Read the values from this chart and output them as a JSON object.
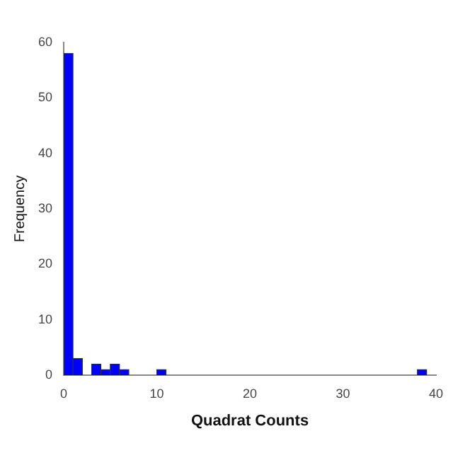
{
  "chart_data": {
    "type": "histogram",
    "xlabel": "Quadrat Counts",
    "ylabel": "Frequency",
    "bins": [
      0,
      1,
      2,
      3,
      4,
      5,
      6,
      7,
      8,
      9,
      10,
      11,
      12,
      13,
      14,
      15,
      16,
      17,
      18,
      19,
      20,
      21,
      22,
      23,
      24,
      25,
      26,
      27,
      28,
      29,
      30,
      31,
      32,
      33,
      34,
      35,
      36,
      37,
      38,
      39
    ],
    "values": [
      58,
      3,
      0,
      2,
      1,
      2,
      1,
      0,
      0,
      0,
      1,
      0,
      0,
      0,
      0,
      0,
      0,
      0,
      0,
      0,
      0,
      0,
      0,
      0,
      0,
      0,
      0,
      0,
      0,
      0,
      0,
      0,
      0,
      0,
      0,
      0,
      0,
      0,
      1
    ],
    "color": "#0000ff",
    "xlim": [
      0,
      40
    ],
    "xticks": [
      0,
      10,
      20,
      30,
      40
    ],
    "ylim": [
      0,
      60
    ],
    "yticks": [
      0,
      10,
      20,
      30,
      40,
      50,
      60
    ],
    "grid": false,
    "legend": false
  }
}
